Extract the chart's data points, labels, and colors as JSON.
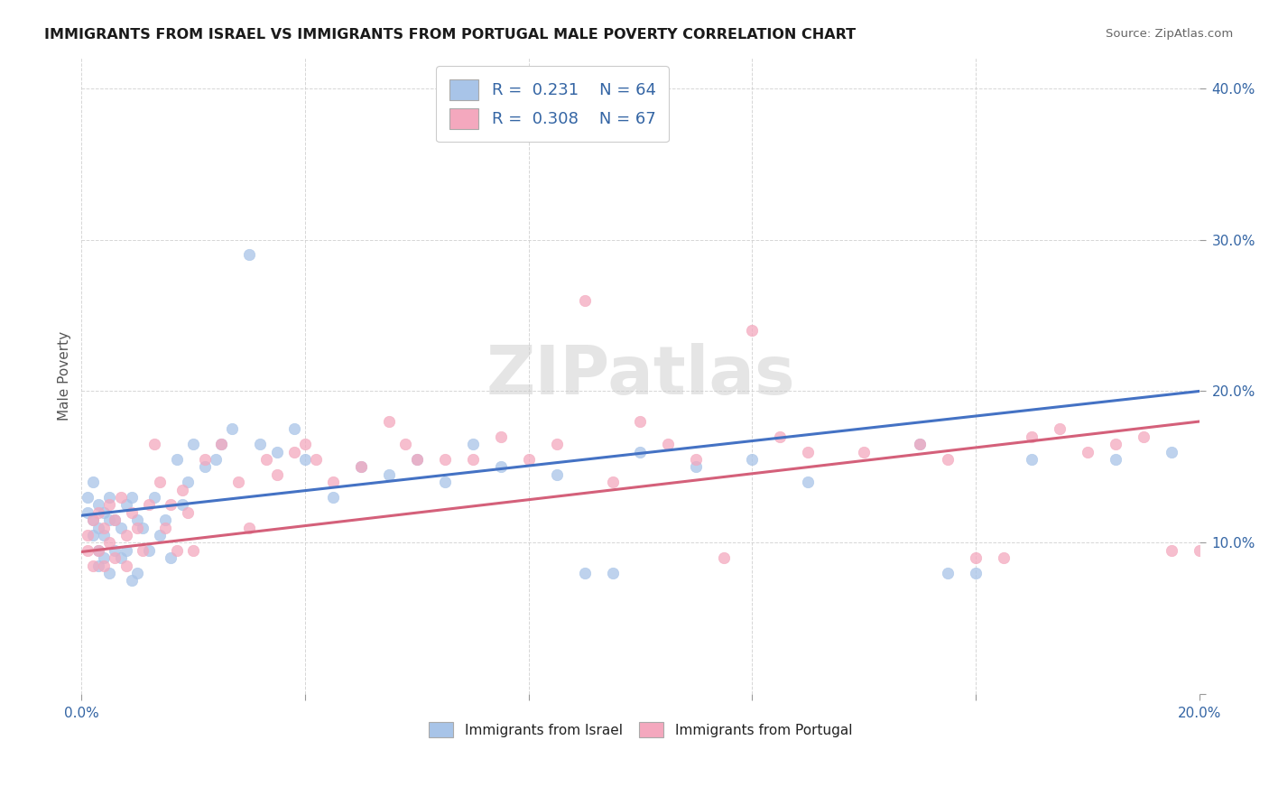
{
  "title": "IMMIGRANTS FROM ISRAEL VS IMMIGRANTS FROM PORTUGAL MALE POVERTY CORRELATION CHART",
  "source": "Source: ZipAtlas.com",
  "ylabel": "Male Poverty",
  "xlim": [
    0.0,
    0.2
  ],
  "ylim": [
    0.0,
    0.42
  ],
  "x_tick_positions": [
    0.0,
    0.04,
    0.08,
    0.12,
    0.16,
    0.2
  ],
  "x_tick_labels": [
    "0.0%",
    "",
    "",
    "",
    "",
    "20.0%"
  ],
  "y_tick_positions": [
    0.0,
    0.1,
    0.2,
    0.3,
    0.4
  ],
  "y_tick_labels": [
    "",
    "10.0%",
    "20.0%",
    "30.0%",
    "40.0%"
  ],
  "israel_R": 0.231,
  "israel_N": 64,
  "portugal_R": 0.308,
  "portugal_N": 67,
  "israel_color": "#a8c4e8",
  "portugal_color": "#f4a8be",
  "israel_line_color": "#4472c4",
  "portugal_line_color": "#d4607a",
  "background_color": "#ffffff",
  "grid_color": "#cccccc",
  "watermark": "ZIPatlas",
  "israel_line_x0": 0.0,
  "israel_line_y0": 0.118,
  "israel_line_x1": 0.2,
  "israel_line_y1": 0.2,
  "portugal_line_x0": 0.0,
  "portugal_line_y0": 0.094,
  "portugal_line_x1": 0.2,
  "portugal_line_y1": 0.18,
  "israel_x": [
    0.001,
    0.001,
    0.002,
    0.002,
    0.002,
    0.003,
    0.003,
    0.003,
    0.003,
    0.004,
    0.004,
    0.004,
    0.005,
    0.005,
    0.005,
    0.006,
    0.006,
    0.007,
    0.007,
    0.008,
    0.008,
    0.009,
    0.009,
    0.01,
    0.01,
    0.011,
    0.012,
    0.013,
    0.014,
    0.015,
    0.016,
    0.017,
    0.018,
    0.019,
    0.02,
    0.022,
    0.024,
    0.025,
    0.027,
    0.03,
    0.032,
    0.035,
    0.038,
    0.04,
    0.045,
    0.05,
    0.055,
    0.06,
    0.065,
    0.07,
    0.075,
    0.085,
    0.09,
    0.095,
    0.1,
    0.11,
    0.12,
    0.13,
    0.15,
    0.155,
    0.16,
    0.17,
    0.185,
    0.195
  ],
  "israel_y": [
    0.13,
    0.12,
    0.14,
    0.115,
    0.105,
    0.125,
    0.11,
    0.095,
    0.085,
    0.12,
    0.105,
    0.09,
    0.13,
    0.115,
    0.08,
    0.115,
    0.095,
    0.11,
    0.09,
    0.125,
    0.095,
    0.13,
    0.075,
    0.115,
    0.08,
    0.11,
    0.095,
    0.13,
    0.105,
    0.115,
    0.09,
    0.155,
    0.125,
    0.14,
    0.165,
    0.15,
    0.155,
    0.165,
    0.175,
    0.29,
    0.165,
    0.16,
    0.175,
    0.155,
    0.13,
    0.15,
    0.145,
    0.155,
    0.14,
    0.165,
    0.15,
    0.145,
    0.08,
    0.08,
    0.16,
    0.15,
    0.155,
    0.14,
    0.165,
    0.08,
    0.08,
    0.155,
    0.155,
    0.16
  ],
  "portugal_x": [
    0.001,
    0.001,
    0.002,
    0.002,
    0.003,
    0.003,
    0.004,
    0.004,
    0.005,
    0.005,
    0.006,
    0.006,
    0.007,
    0.008,
    0.008,
    0.009,
    0.01,
    0.011,
    0.012,
    0.013,
    0.014,
    0.015,
    0.016,
    0.017,
    0.018,
    0.019,
    0.02,
    0.022,
    0.025,
    0.028,
    0.03,
    0.033,
    0.035,
    0.038,
    0.04,
    0.042,
    0.045,
    0.05,
    0.055,
    0.058,
    0.06,
    0.065,
    0.07,
    0.075,
    0.08,
    0.085,
    0.09,
    0.095,
    0.1,
    0.105,
    0.11,
    0.115,
    0.12,
    0.125,
    0.13,
    0.14,
    0.15,
    0.155,
    0.16,
    0.165,
    0.17,
    0.175,
    0.18,
    0.185,
    0.19,
    0.195,
    0.2
  ],
  "portugal_y": [
    0.105,
    0.095,
    0.115,
    0.085,
    0.12,
    0.095,
    0.11,
    0.085,
    0.125,
    0.1,
    0.115,
    0.09,
    0.13,
    0.105,
    0.085,
    0.12,
    0.11,
    0.095,
    0.125,
    0.165,
    0.14,
    0.11,
    0.125,
    0.095,
    0.135,
    0.12,
    0.095,
    0.155,
    0.165,
    0.14,
    0.11,
    0.155,
    0.145,
    0.16,
    0.165,
    0.155,
    0.14,
    0.15,
    0.18,
    0.165,
    0.155,
    0.155,
    0.155,
    0.17,
    0.155,
    0.165,
    0.26,
    0.14,
    0.18,
    0.165,
    0.155,
    0.09,
    0.24,
    0.17,
    0.16,
    0.16,
    0.165,
    0.155,
    0.09,
    0.09,
    0.17,
    0.175,
    0.16,
    0.165,
    0.17,
    0.095,
    0.095
  ]
}
